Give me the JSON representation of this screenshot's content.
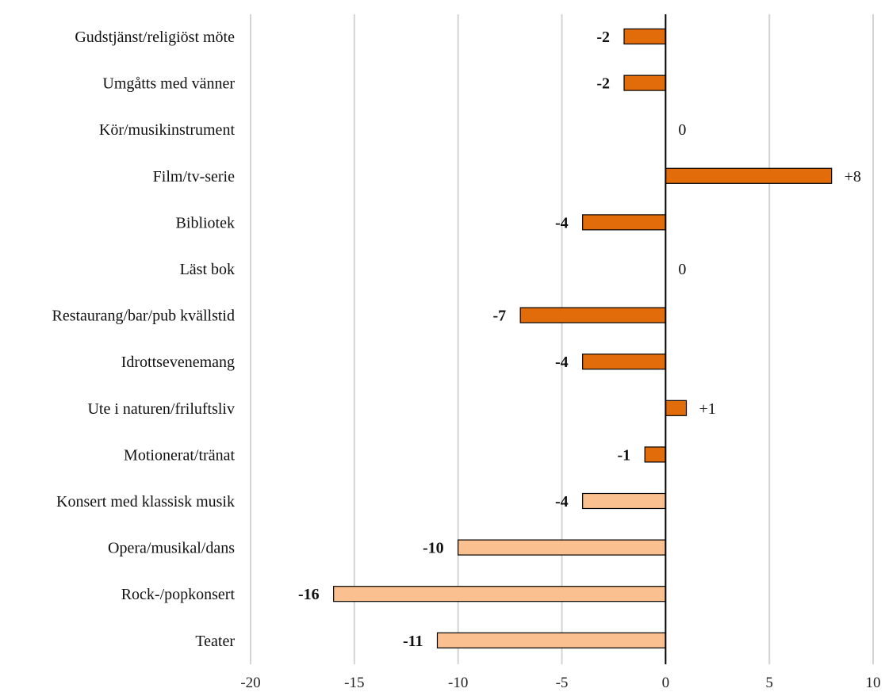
{
  "chart_data": {
    "type": "bar",
    "orientation": "horizontal",
    "title": "",
    "xlabel": "",
    "ylabel": "",
    "xlim": [
      -20,
      10
    ],
    "xticks": [
      -20,
      -15,
      -10,
      -5,
      0,
      5,
      10
    ],
    "grid": true,
    "legend": "none",
    "categories": [
      "Gudstjänst/religiöst möte",
      "Umgåtts med vänner",
      "Kör/musikinstrument",
      "Film/tv-serie",
      "Bibliotek",
      "Läst bok",
      "Restaurang/bar/pub kvällstid",
      "Idrottsevenemang",
      "Ute i naturen/friluftsliv",
      "Motionerat/tränat",
      "Konsert med klassisk musik",
      "Opera/musikal/dans",
      "Rock-/popkonsert",
      "Teater"
    ],
    "values": [
      -2,
      -2,
      0,
      8,
      -4,
      0,
      -7,
      -4,
      1,
      -1,
      -4,
      -10,
      -16,
      -11
    ],
    "value_labels": [
      "-2",
      "-2",
      "0",
      "+8",
      "-4",
      "0",
      "-7",
      "-4",
      "+1",
      "-1",
      "-4",
      "-10",
      "-16",
      "-11"
    ],
    "bar_colors": [
      "#e36c0a",
      "#e36c0a",
      "#e36c0a",
      "#e36c0a",
      "#e36c0a",
      "#e36c0a",
      "#e36c0a",
      "#e36c0a",
      "#e36c0a",
      "#e36c0a",
      "#fac090",
      "#fac090",
      "#fac090",
      "#fac090"
    ]
  }
}
